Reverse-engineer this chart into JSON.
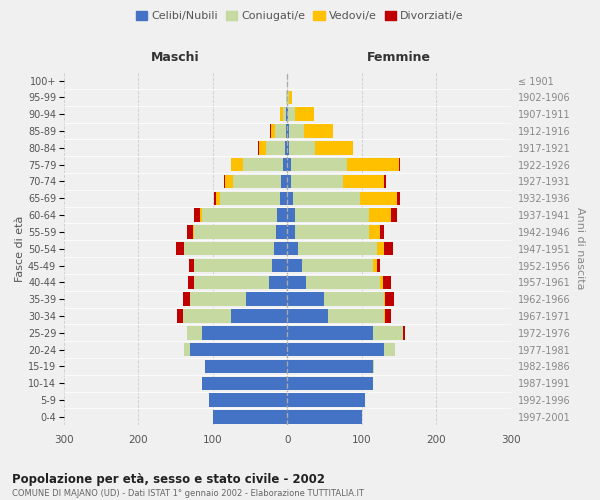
{
  "age_groups": [
    "0-4",
    "5-9",
    "10-14",
    "15-19",
    "20-24",
    "25-29",
    "30-34",
    "35-39",
    "40-44",
    "45-49",
    "50-54",
    "55-59",
    "60-64",
    "65-69",
    "70-74",
    "75-79",
    "80-84",
    "85-89",
    "90-94",
    "95-99",
    "100+"
  ],
  "birth_years": [
    "1997-2001",
    "1992-1996",
    "1987-1991",
    "1982-1986",
    "1977-1981",
    "1972-1976",
    "1967-1971",
    "1962-1966",
    "1957-1961",
    "1952-1956",
    "1947-1951",
    "1942-1946",
    "1937-1941",
    "1932-1936",
    "1927-1931",
    "1922-1926",
    "1917-1921",
    "1912-1916",
    "1907-1911",
    "1902-1906",
    "≤ 1901"
  ],
  "maschi": {
    "celibe": [
      100,
      105,
      115,
      110,
      130,
      115,
      75,
      55,
      25,
      20,
      18,
      15,
      14,
      10,
      8,
      5,
      3,
      2,
      1,
      0,
      0
    ],
    "coniugato": [
      0,
      0,
      0,
      0,
      8,
      20,
      65,
      75,
      100,
      105,
      120,
      110,
      100,
      80,
      65,
      55,
      25,
      15,
      5,
      1,
      0
    ],
    "vedovo": [
      0,
      0,
      0,
      0,
      0,
      0,
      0,
      0,
      0,
      0,
      1,
      2,
      3,
      5,
      10,
      15,
      10,
      5,
      3,
      1,
      0
    ],
    "divorziato": [
      0,
      0,
      0,
      0,
      0,
      0,
      8,
      10,
      8,
      7,
      10,
      8,
      8,
      3,
      2,
      1,
      1,
      1,
      0,
      0,
      0
    ]
  },
  "femmine": {
    "nubile": [
      100,
      105,
      115,
      115,
      130,
      115,
      55,
      50,
      25,
      20,
      15,
      10,
      10,
      8,
      5,
      5,
      3,
      2,
      1,
      0,
      0
    ],
    "coniugata": [
      0,
      0,
      0,
      2,
      15,
      40,
      75,
      80,
      100,
      95,
      105,
      100,
      100,
      90,
      70,
      75,
      35,
      20,
      10,
      2,
      0
    ],
    "vedova": [
      0,
      0,
      0,
      0,
      0,
      1,
      1,
      2,
      3,
      5,
      10,
      15,
      30,
      50,
      55,
      70,
      50,
      40,
      25,
      5,
      0
    ],
    "divorziata": [
      0,
      0,
      0,
      0,
      0,
      2,
      8,
      12,
      12,
      5,
      12,
      5,
      8,
      4,
      3,
      2,
      1,
      0,
      0,
      0,
      0
    ]
  },
  "colors": {
    "celibe": "#4472c4",
    "coniugato": "#c5d9a0",
    "vedovo": "#ffc000",
    "divorziato": "#c00000"
  },
  "xlim": 300,
  "title": "Popolazione per età, sesso e stato civile - 2002",
  "subtitle": "COMUNE DI MAJANO (UD) - Dati ISTAT 1° gennaio 2002 - Elaborazione TUTTITALIA.IT",
  "ylabel_left": "Fasce di età",
  "ylabel_right": "Anni di nascita",
  "xlabel_left": "Maschi",
  "xlabel_right": "Femmine",
  "bg_color": "#f0f0f0",
  "legend_labels": [
    "Celibi/Nubili",
    "Coniugati/e",
    "Vedovi/e",
    "Divorziati/e"
  ]
}
